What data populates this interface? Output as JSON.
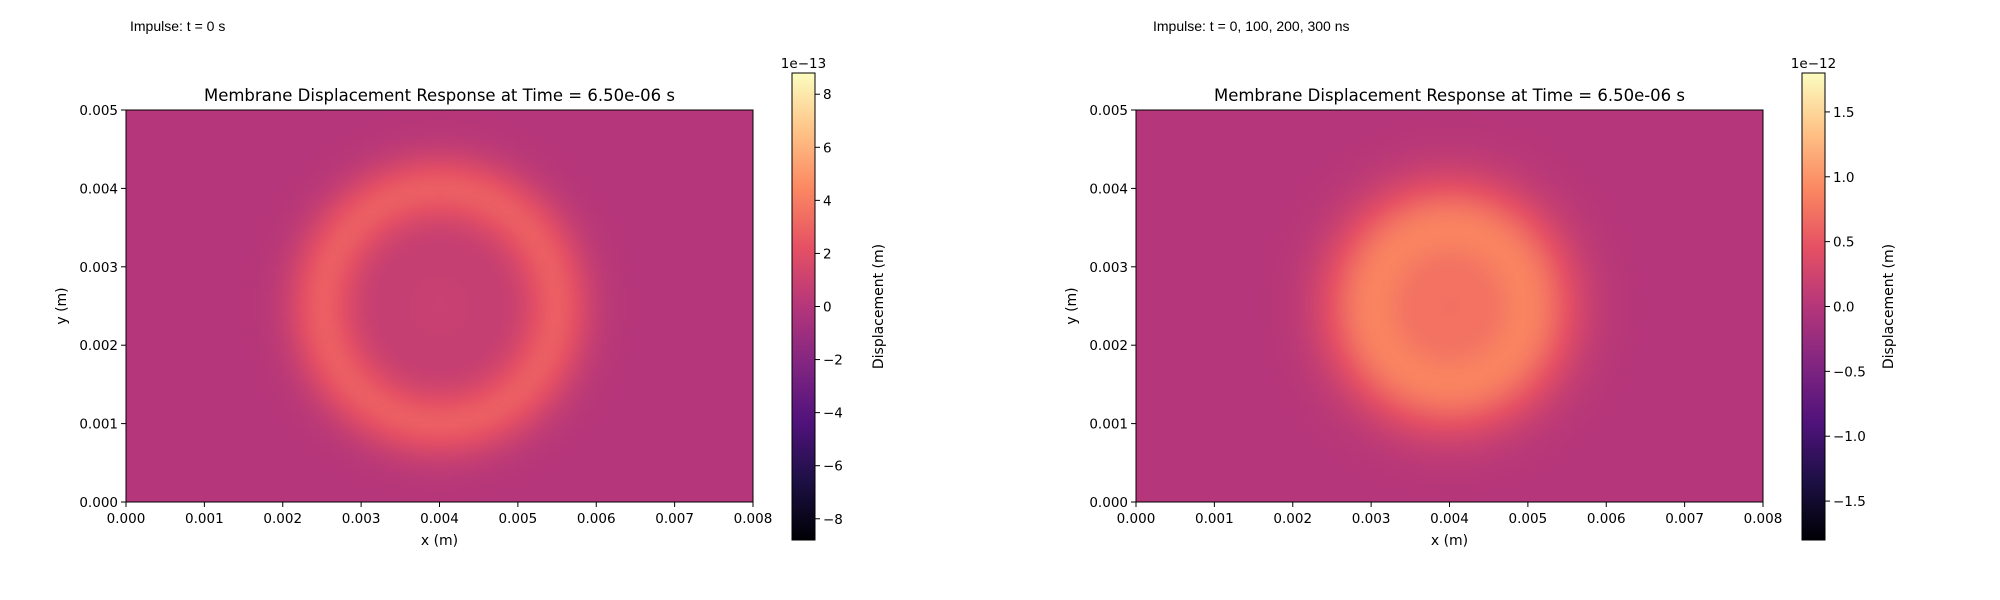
{
  "panels": [
    {
      "caption": "Impulse: t = 0 s",
      "caption_id": "left"
    },
    {
      "caption": "Impulse: t = 0, 100, 200, 300 ns",
      "caption_id": "right"
    }
  ],
  "chart_data": [
    {
      "type": "heatmap",
      "title": "Membrane Displacement Response at Time = 6.50e-06 s",
      "xlabel": "x (m)",
      "ylabel": "y (m)",
      "xlim": [
        0.0,
        0.008
      ],
      "ylim": [
        0.0,
        0.005
      ],
      "xticks": [
        "0.000",
        "0.001",
        "0.002",
        "0.003",
        "0.004",
        "0.005",
        "0.006",
        "0.007",
        "0.008"
      ],
      "yticks": [
        "0.000",
        "0.001",
        "0.002",
        "0.003",
        "0.004",
        "0.005"
      ],
      "colormap": "magma",
      "colorbar": {
        "label": "Displacement (m)",
        "offset_text": "1e−13",
        "range": [
          -8.8,
          8.8
        ],
        "ticks": [
          8,
          6,
          4,
          2,
          0,
          -2,
          -4,
          -6,
          -8
        ],
        "tick_labels": [
          "8",
          "6",
          "4",
          "2",
          "0",
          "−2",
          "−4",
          "−6",
          "−8"
        ]
      },
      "field": {
        "center": [
          0.004,
          0.0025
        ],
        "background_value": 0.0,
        "features": [
          {
            "kind": "ring",
            "radius": 0.0015,
            "width": 0.00045,
            "peak": 2.6
          },
          {
            "kind": "disk",
            "radius": 0.0012,
            "peak": 0.9
          }
        ]
      }
    },
    {
      "type": "heatmap",
      "title": "Membrane Displacement Response at Time = 6.50e-06 s",
      "xlabel": "x (m)",
      "ylabel": "y (m)",
      "xlim": [
        0.0,
        0.008
      ],
      "ylim": [
        0.0,
        0.005
      ],
      "xticks": [
        "0.000",
        "0.001",
        "0.002",
        "0.003",
        "0.004",
        "0.005",
        "0.006",
        "0.007",
        "0.008"
      ],
      "yticks": [
        "0.000",
        "0.001",
        "0.002",
        "0.003",
        "0.004",
        "0.005"
      ],
      "colormap": "magma",
      "colorbar": {
        "label": "Displacement (m)",
        "offset_text": "1e−12",
        "range": [
          -1.8,
          1.8
        ],
        "ticks": [
          1.5,
          1.0,
          0.5,
          0.0,
          -0.5,
          -1.0,
          -1.5
        ],
        "tick_labels": [
          "1.5",
          "1.0",
          "0.5",
          "0.0",
          "−0.5",
          "−1.0",
          "−1.5"
        ]
      },
      "field": {
        "center": [
          0.004,
          0.0025
        ],
        "background_value": 0.0,
        "features": [
          {
            "kind": "ring",
            "radius": 0.001,
            "width": 0.00065,
            "peak": 0.85
          },
          {
            "kind": "disk",
            "radius": 0.00055,
            "peak": 0.62
          }
        ]
      }
    }
  ]
}
